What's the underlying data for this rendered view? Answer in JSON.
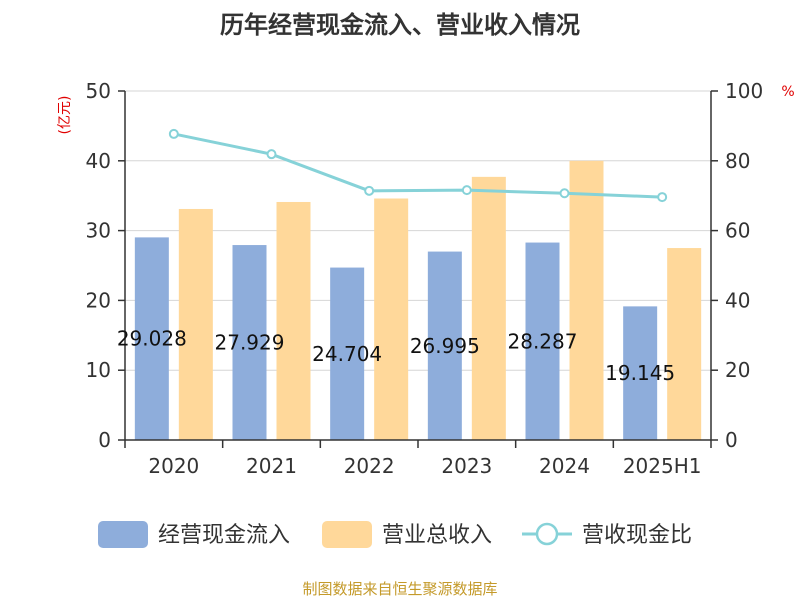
{
  "chart_data": {
    "type": "bar",
    "title": "历年经营现金流入、营业收入情况",
    "left_unit": "(亿元)",
    "right_unit": "%",
    "categories": [
      "2020",
      "2021",
      "2022",
      "2023",
      "2024",
      "2025H1"
    ],
    "ylim_left": [
      0,
      50
    ],
    "yticks_left": [
      "0",
      "10",
      "20",
      "30",
      "40",
      "50"
    ],
    "ylim_right": [
      0,
      100
    ],
    "yticks_right": [
      "0",
      "20",
      "40",
      "60",
      "80",
      "100"
    ],
    "grid": true,
    "legend_position": "bottom",
    "series": [
      {
        "name": "经营现金流入",
        "type": "bar",
        "axis": "left",
        "color": "#8EADDB",
        "values": [
          29.028,
          27.929,
          24.704,
          26.995,
          28.287,
          19.145
        ],
        "labels": [
          "29.028",
          "27.929",
          "24.704",
          "26.995",
          "28.287",
          "19.145"
        ]
      },
      {
        "name": "营业总收入",
        "type": "bar",
        "axis": "left",
        "color": "#FFD89A",
        "values": [
          33.1,
          34.1,
          34.6,
          37.7,
          40.0,
          27.5
        ]
      },
      {
        "name": "营收现金比",
        "type": "line",
        "axis": "right",
        "color": "#86D2D8",
        "values": [
          87.7,
          81.9,
          71.4,
          71.6,
          70.7,
          69.6
        ]
      }
    ],
    "source": "制图数据来自恒生聚源数据库"
  }
}
